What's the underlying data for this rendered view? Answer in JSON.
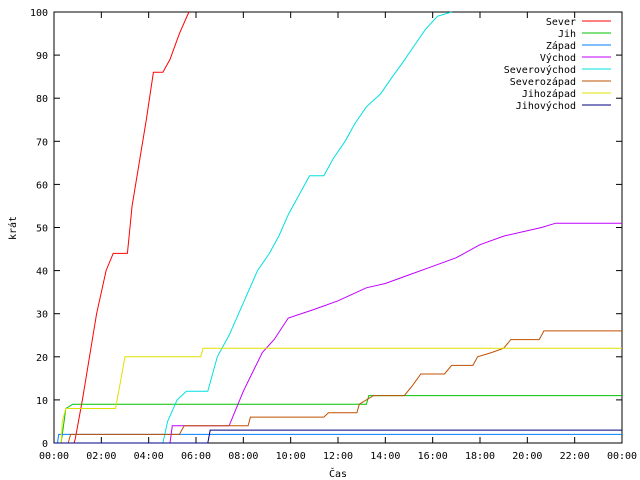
{
  "chart_data": {
    "type": "line",
    "title": "",
    "xlabel": "Čas",
    "ylabel": "krát",
    "xlim": [
      0,
      24
    ],
    "ylim": [
      0,
      100
    ],
    "xticks": [
      {
        "value": 0,
        "label": "00:00"
      },
      {
        "value": 2,
        "label": "02:00"
      },
      {
        "value": 4,
        "label": "04:00"
      },
      {
        "value": 6,
        "label": "06:00"
      },
      {
        "value": 8,
        "label": "08:00"
      },
      {
        "value": 10,
        "label": "10:00"
      },
      {
        "value": 12,
        "label": "12:00"
      },
      {
        "value": 14,
        "label": "14:00"
      },
      {
        "value": 16,
        "label": "16:00"
      },
      {
        "value": 18,
        "label": "18:00"
      },
      {
        "value": 20,
        "label": "20:00"
      },
      {
        "value": 22,
        "label": "22:00"
      },
      {
        "value": 24,
        "label": "00:00"
      }
    ],
    "yticks": [
      0,
      10,
      20,
      30,
      40,
      50,
      60,
      70,
      80,
      90,
      100
    ],
    "grid": false,
    "legend": "top-right",
    "series": [
      {
        "name": "Sever",
        "color": "#ff0000",
        "points": [
          [
            0,
            0
          ],
          [
            0.85,
            0
          ],
          [
            0.9,
            1
          ],
          [
            1.2,
            10
          ],
          [
            1.5,
            20
          ],
          [
            1.8,
            30
          ],
          [
            2.2,
            40
          ],
          [
            2.5,
            44
          ],
          [
            3.1,
            44
          ],
          [
            3.3,
            55
          ],
          [
            3.6,
            65
          ],
          [
            3.9,
            75
          ],
          [
            4.2,
            86
          ],
          [
            4.6,
            86
          ],
          [
            4.9,
            89
          ],
          [
            5.3,
            95
          ],
          [
            5.7,
            100
          ]
        ]
      },
      {
        "name": "Jih",
        "color": "#00c000",
        "points": [
          [
            0,
            0
          ],
          [
            0.3,
            0
          ],
          [
            0.35,
            2
          ],
          [
            0.5,
            8
          ],
          [
            0.8,
            9
          ],
          [
            13.2,
            9
          ],
          [
            13.3,
            11
          ],
          [
            24,
            11
          ]
        ]
      },
      {
        "name": "Západ",
        "color": "#0080ff",
        "points": [
          [
            0,
            0
          ],
          [
            0.15,
            0
          ],
          [
            0.2,
            2
          ],
          [
            24,
            2
          ]
        ]
      },
      {
        "name": "Východ",
        "color": "#c000ff",
        "points": [
          [
            0,
            0
          ],
          [
            4.9,
            0
          ],
          [
            5,
            4
          ],
          [
            7.4,
            4
          ],
          [
            8,
            12
          ],
          [
            8.8,
            21
          ],
          [
            9.3,
            24
          ],
          [
            9.9,
            29
          ],
          [
            11,
            31
          ],
          [
            12,
            33
          ],
          [
            13.2,
            36
          ],
          [
            14,
            37
          ],
          [
            15,
            39
          ],
          [
            16,
            41
          ],
          [
            17,
            43
          ],
          [
            18,
            46
          ],
          [
            19,
            48
          ],
          [
            20.6,
            50
          ],
          [
            21.2,
            51
          ],
          [
            24,
            51
          ]
        ]
      },
      {
        "name": "Severovýchod",
        "color": "#00e0e0",
        "points": [
          [
            0,
            0
          ],
          [
            4.6,
            0
          ],
          [
            4.8,
            5
          ],
          [
            5.2,
            10
          ],
          [
            5.6,
            12
          ],
          [
            6.5,
            12
          ],
          [
            6.9,
            20
          ],
          [
            7.4,
            25
          ],
          [
            7.8,
            30
          ],
          [
            8.2,
            35
          ],
          [
            8.6,
            40
          ],
          [
            9.1,
            44
          ],
          [
            9.5,
            48
          ],
          [
            9.9,
            53
          ],
          [
            10.3,
            57
          ],
          [
            10.8,
            62
          ],
          [
            11.4,
            62
          ],
          [
            11.8,
            66
          ],
          [
            12.3,
            70
          ],
          [
            12.7,
            74
          ],
          [
            13.2,
            78
          ],
          [
            13.8,
            81
          ],
          [
            14.3,
            85
          ],
          [
            14.7,
            88
          ],
          [
            15.2,
            92
          ],
          [
            15.7,
            96
          ],
          [
            16.2,
            99
          ],
          [
            16.8,
            100
          ]
        ]
      },
      {
        "name": "Severozápad",
        "color": "#c05000",
        "points": [
          [
            0,
            0
          ],
          [
            0.6,
            0
          ],
          [
            0.7,
            2
          ],
          [
            5.3,
            2
          ],
          [
            5.5,
            4
          ],
          [
            8.2,
            4
          ],
          [
            8.3,
            6
          ],
          [
            11.4,
            6
          ],
          [
            11.6,
            7
          ],
          [
            12.8,
            7
          ],
          [
            12.9,
            9
          ],
          [
            13.5,
            11
          ],
          [
            14.8,
            11
          ],
          [
            15.1,
            13
          ],
          [
            15.5,
            16
          ],
          [
            16.5,
            16
          ],
          [
            16.8,
            18
          ],
          [
            17.7,
            18
          ],
          [
            17.9,
            20
          ],
          [
            18.5,
            21
          ],
          [
            19,
            22
          ],
          [
            19.3,
            24
          ],
          [
            20.5,
            24
          ],
          [
            20.7,
            26
          ],
          [
            24,
            26
          ]
        ]
      },
      {
        "name": "Jihozápad",
        "color": "#e0e000",
        "points": [
          [
            0,
            0
          ],
          [
            0.3,
            0
          ],
          [
            0.35,
            5
          ],
          [
            0.5,
            8
          ],
          [
            2.6,
            8
          ],
          [
            2.8,
            14
          ],
          [
            3,
            20
          ],
          [
            6.2,
            20
          ],
          [
            6.3,
            22
          ],
          [
            24,
            22
          ]
        ]
      },
      {
        "name": "Jihovýchod",
        "color": "#000080",
        "points": [
          [
            0,
            0
          ],
          [
            6.5,
            0
          ],
          [
            6.6,
            3
          ],
          [
            24,
            3
          ]
        ]
      }
    ]
  }
}
